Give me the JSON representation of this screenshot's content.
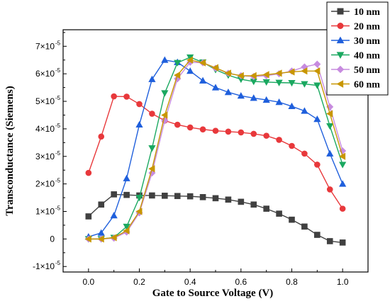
{
  "chart_data": {
    "type": "line",
    "xlabel": "Gate to Source Voltage (V)",
    "ylabel": "Transconductance (Siemens)",
    "xlim": [
      -0.1,
      1.1
    ],
    "ylim": [
      -1.2e-05,
      7.6e-05
    ],
    "x_ticks": [
      {
        "v": 0.0,
        "label": "0.0"
      },
      {
        "v": 0.2,
        "label": "0.2"
      },
      {
        "v": 0.4,
        "label": "0.4"
      },
      {
        "v": 0.6,
        "label": "0.6"
      },
      {
        "v": 0.8,
        "label": "0.8"
      },
      {
        "v": 1.0,
        "label": "1.0"
      }
    ],
    "y_ticks": [
      {
        "v": -1e-05,
        "mantissa": "-1×10",
        "exp": "-5"
      },
      {
        "v": 0,
        "mantissa": "0",
        "exp": ""
      },
      {
        "v": 1e-05,
        "mantissa": "1×10",
        "exp": "-5"
      },
      {
        "v": 2e-05,
        "mantissa": "2×10",
        "exp": "-5"
      },
      {
        "v": 3e-05,
        "mantissa": "3×10",
        "exp": "-5"
      },
      {
        "v": 4e-05,
        "mantissa": "4×10",
        "exp": "-5"
      },
      {
        "v": 5e-05,
        "mantissa": "5×10",
        "exp": "-5"
      },
      {
        "v": 6e-05,
        "mantissa": "6×10",
        "exp": "-5"
      },
      {
        "v": 7e-05,
        "mantissa": "7×10",
        "exp": "-5"
      }
    ],
    "x": [
      0.0,
      0.05,
      0.1,
      0.15,
      0.2,
      0.25,
      0.3,
      0.35,
      0.4,
      0.45,
      0.5,
      0.55,
      0.6,
      0.65,
      0.7,
      0.75,
      0.8,
      0.85,
      0.9,
      0.95,
      1.0
    ],
    "legend_position": "top-right",
    "grid": false,
    "series": [
      {
        "name": "10 nm",
        "color": "#404040",
        "marker": "square",
        "values": [
          8.2e-06,
          1.25e-05,
          1.62e-05,
          1.6e-05,
          1.58e-05,
          1.58e-05,
          1.57e-05,
          1.56e-05,
          1.55e-05,
          1.52e-05,
          1.48e-05,
          1.43e-05,
          1.35e-05,
          1.25e-05,
          1.1e-05,
          9.2e-06,
          7e-06,
          4.5e-06,
          1.5e-06,
          -8e-07,
          -1.3e-06
        ]
      },
      {
        "name": "20 nm",
        "color": "#e8383b",
        "marker": "circle",
        "values": [
          2.4e-05,
          3.72e-05,
          5.18e-05,
          5.17e-05,
          4.9e-05,
          4.55e-05,
          4.3e-05,
          4.15e-05,
          4.05e-05,
          3.98e-05,
          3.93e-05,
          3.9e-05,
          3.87e-05,
          3.82e-05,
          3.75e-05,
          3.6e-05,
          3.38e-05,
          3.1e-05,
          2.7e-05,
          1.8e-05,
          1.1e-05
        ]
      },
      {
        "name": "30 nm",
        "color": "#1f5fdc",
        "marker": "triangle-up",
        "values": [
          8e-07,
          2.2e-06,
          8.5e-06,
          2.2e-05,
          4.15e-05,
          5.8e-05,
          6.5e-05,
          6.42e-05,
          6.1e-05,
          5.75e-05,
          5.5e-05,
          5.33e-05,
          5.2e-05,
          5.12e-05,
          5.05e-05,
          4.97e-05,
          4.82e-05,
          4.65e-05,
          4.35e-05,
          3.1e-05,
          2e-05
        ]
      },
      {
        "name": "40 nm",
        "color": "#1aa860",
        "marker": "triangle-down",
        "values": [
          0.0,
          0.0,
          5e-07,
          4.5e-06,
          1.5e-05,
          3.3e-05,
          5.3e-05,
          6.4e-05,
          6.6e-05,
          6.42e-05,
          6.15e-05,
          5.95e-05,
          5.8e-05,
          5.72e-05,
          5.7e-05,
          5.68e-05,
          5.67e-05,
          5.63e-05,
          5.58e-05,
          4.1e-05,
          2.7e-05
        ]
      },
      {
        "name": "50 nm",
        "color": "#c78bdf",
        "marker": "diamond",
        "values": [
          0.0,
          0.0,
          3e-07,
          2.5e-06,
          9.5e-06,
          2.4e-05,
          4.3e-05,
          5.82e-05,
          6.42e-05,
          6.4e-05,
          6.2e-05,
          6.02e-05,
          5.93e-05,
          5.9e-05,
          5.93e-05,
          6e-05,
          6.1e-05,
          6.25e-05,
          6.35e-05,
          4.8e-05,
          3.2e-05
        ]
      },
      {
        "name": "60 nm",
        "color": "#c89600",
        "marker": "triangle-left",
        "values": [
          0.0,
          0.0,
          5e-07,
          3e-06,
          1e-05,
          2.55e-05,
          4.5e-05,
          5.95e-05,
          6.5e-05,
          6.4e-05,
          6.22e-05,
          6.02e-05,
          5.93e-05,
          5.93e-05,
          5.97e-05,
          6.02e-05,
          6.07e-05,
          6.1e-05,
          6.1e-05,
          4.55e-05,
          3e-05
        ]
      }
    ]
  }
}
